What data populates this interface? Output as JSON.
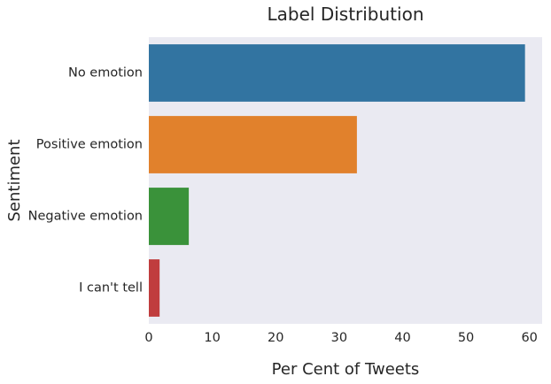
{
  "chart_data": {
    "type": "bar",
    "orientation": "horizontal",
    "title": "Label Distribution",
    "xlabel": "Per Cent of Tweets",
    "ylabel": "Sentiment",
    "categories": [
      "No emotion",
      "Positive emotion",
      "Negative emotion",
      "I can't tell"
    ],
    "values": [
      59.3,
      32.8,
      6.3,
      1.7
    ],
    "colors": [
      "#3274a1",
      "#e1812c",
      "#3a923a",
      "#c03d3e"
    ],
    "xlim": [
      0,
      62
    ],
    "xticks": [
      0,
      10,
      20,
      30,
      40,
      50,
      60
    ],
    "grid": false,
    "background": "#eaeaf2"
  }
}
